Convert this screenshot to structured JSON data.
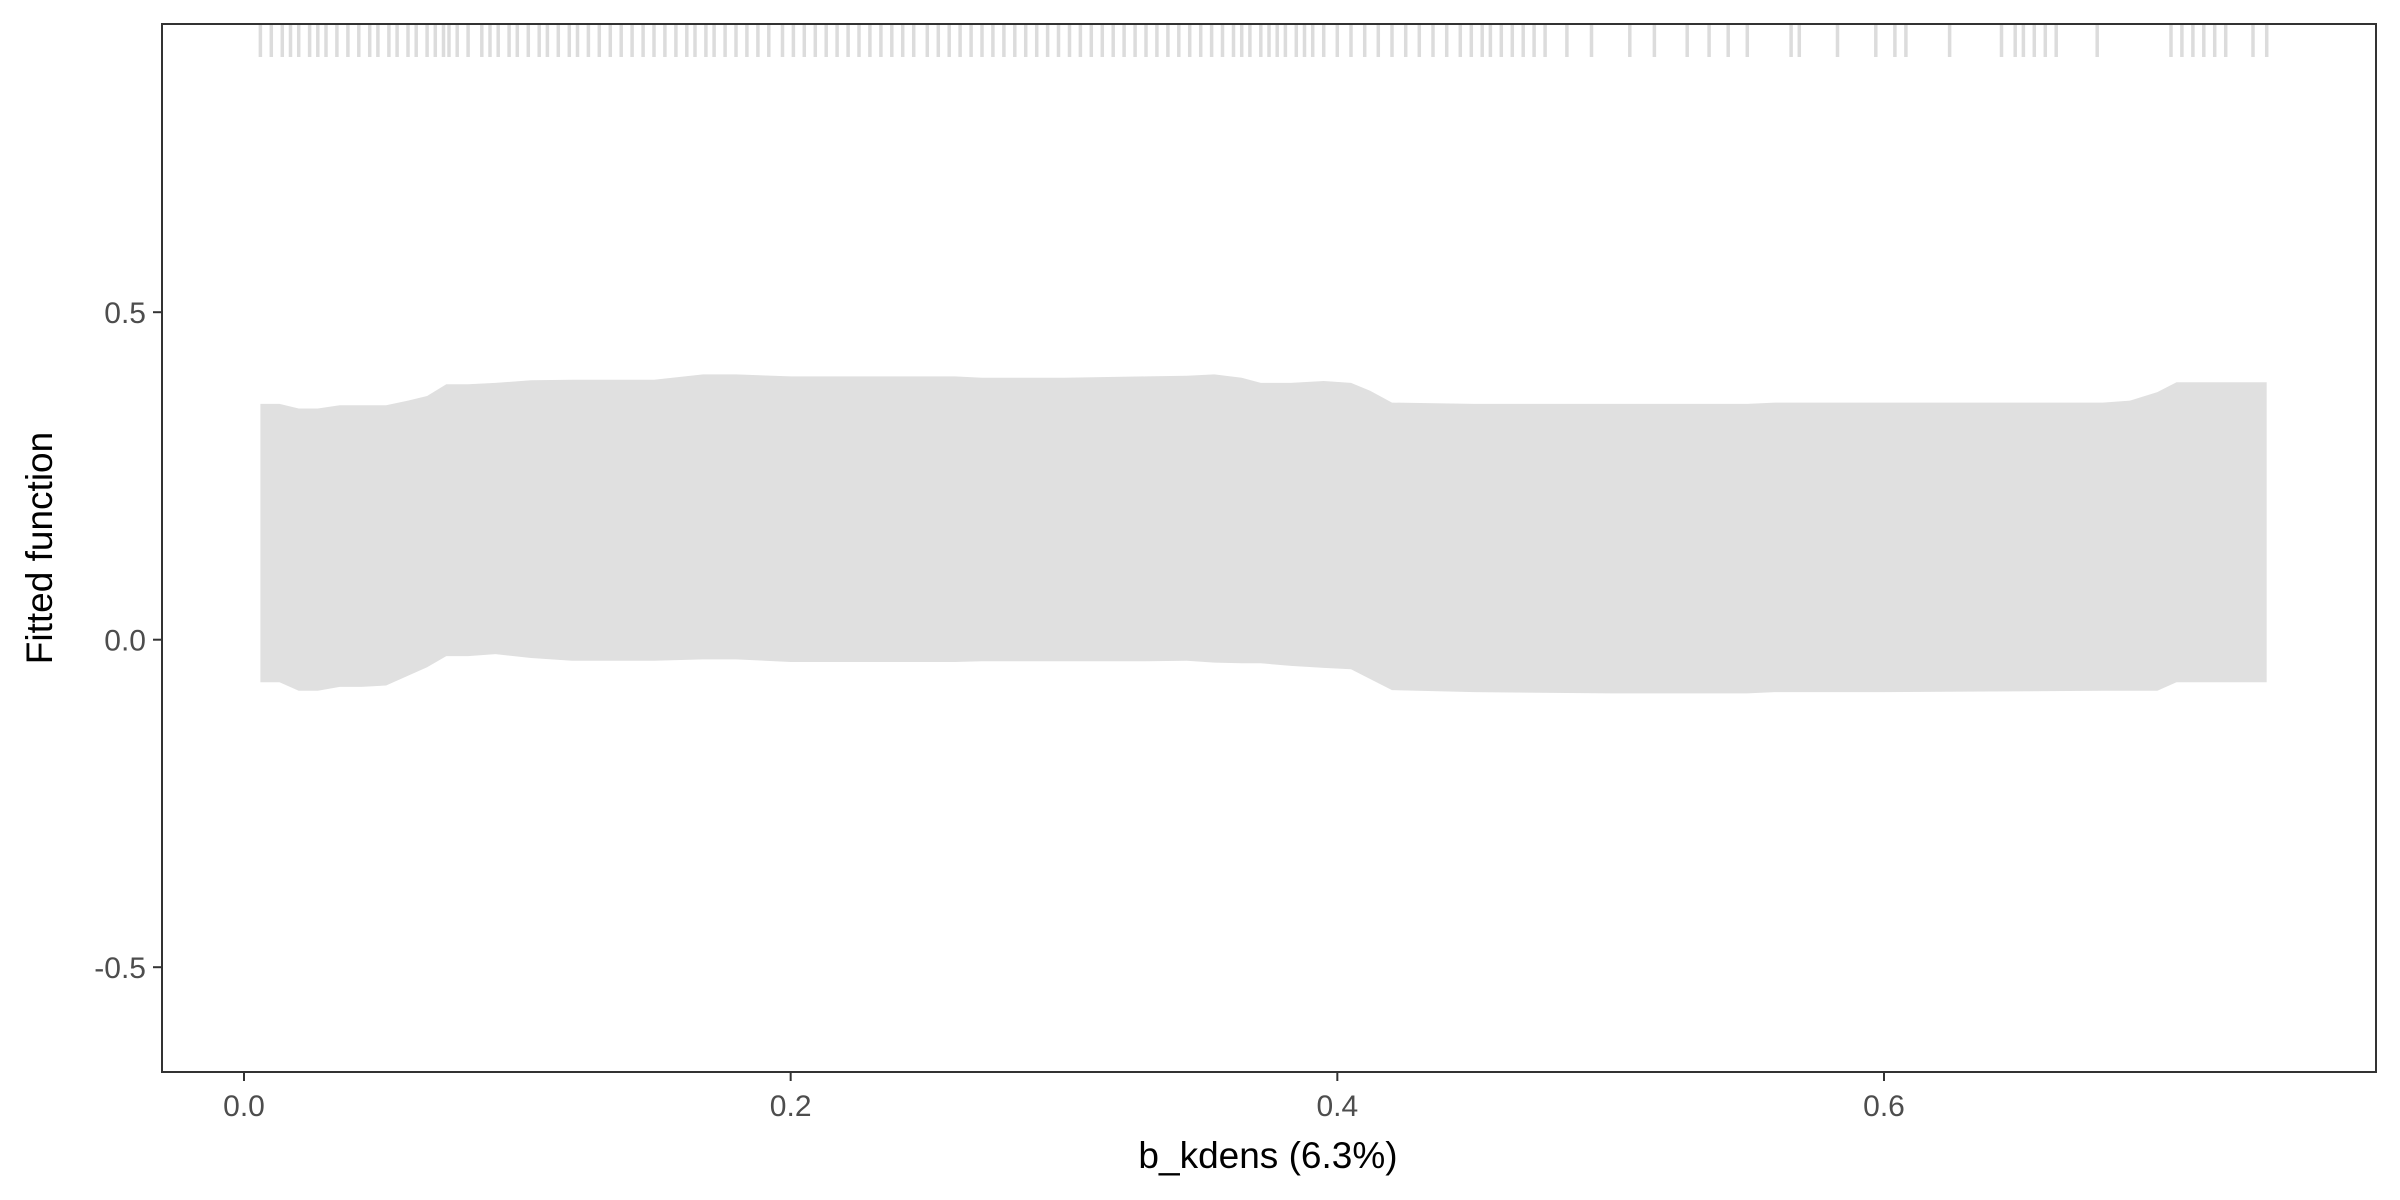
{
  "chart_data": {
    "type": "area",
    "title": "",
    "xlabel": "b_kdens  (6.3%)",
    "ylabel": "Fitted function",
    "xlim": [
      -0.03,
      0.78
    ],
    "ylim": [
      -0.66,
      0.94
    ],
    "x_ticks": [
      0.0,
      0.2,
      0.4,
      0.6
    ],
    "x_tick_labels": [
      "0.0",
      "0.2",
      "0.4",
      "0.6"
    ],
    "y_ticks": [
      -0.5,
      0.0,
      0.5
    ],
    "y_tick_labels": [
      "-0.5",
      "0.0",
      "0.5"
    ],
    "grid": false,
    "colors": {
      "band": "#e0e0e0",
      "rug": "#dcdcdc",
      "axis": "#333333",
      "tick": "#4d4d4d"
    },
    "band": {
      "x": [
        0.006,
        0.013,
        0.02,
        0.027,
        0.035,
        0.043,
        0.052,
        0.06,
        0.067,
        0.074,
        0.082,
        0.092,
        0.105,
        0.12,
        0.15,
        0.168,
        0.18,
        0.2,
        0.26,
        0.27,
        0.3,
        0.33,
        0.345,
        0.355,
        0.365,
        0.372,
        0.383,
        0.395,
        0.405,
        0.412,
        0.42,
        0.45,
        0.5,
        0.55,
        0.56,
        0.6,
        0.68,
        0.69,
        0.7,
        0.707,
        0.74
      ],
      "upper": [
        0.36,
        0.36,
        0.353,
        0.353,
        0.358,
        0.358,
        0.358,
        0.365,
        0.372,
        0.39,
        0.39,
        0.392,
        0.396,
        0.397,
        0.397,
        0.405,
        0.405,
        0.402,
        0.402,
        0.4,
        0.4,
        0.402,
        0.403,
        0.405,
        0.4,
        0.392,
        0.392,
        0.395,
        0.392,
        0.38,
        0.362,
        0.36,
        0.36,
        0.36,
        0.362,
        0.362,
        0.362,
        0.365,
        0.378,
        0.393,
        0.393
      ],
      "lower": [
        -0.065,
        -0.065,
        -0.078,
        -0.078,
        -0.072,
        -0.072,
        -0.07,
        -0.055,
        -0.042,
        -0.025,
        -0.025,
        -0.022,
        -0.028,
        -0.032,
        -0.032,
        -0.03,
        -0.03,
        -0.034,
        -0.034,
        -0.033,
        -0.033,
        -0.033,
        -0.032,
        -0.035,
        -0.036,
        -0.036,
        -0.04,
        -0.043,
        -0.045,
        -0.06,
        -0.077,
        -0.08,
        -0.082,
        -0.082,
        -0.08,
        -0.08,
        -0.078,
        -0.078,
        -0.078,
        -0.065,
        -0.065
      ]
    },
    "rug": [
      0.006,
      0.01,
      0.014,
      0.017,
      0.02,
      0.024,
      0.027,
      0.03,
      0.034,
      0.038,
      0.042,
      0.046,
      0.049,
      0.053,
      0.056,
      0.06,
      0.063,
      0.067,
      0.07,
      0.073,
      0.075,
      0.078,
      0.082,
      0.087,
      0.09,
      0.093,
      0.097,
      0.1,
      0.104,
      0.108,
      0.111,
      0.115,
      0.119,
      0.122,
      0.126,
      0.13,
      0.134,
      0.138,
      0.142,
      0.146,
      0.15,
      0.154,
      0.158,
      0.162,
      0.165,
      0.169,
      0.172,
      0.176,
      0.18,
      0.184,
      0.188,
      0.192,
      0.197,
      0.201,
      0.205,
      0.209,
      0.213,
      0.217,
      0.221,
      0.225,
      0.229,
      0.233,
      0.237,
      0.241,
      0.245,
      0.25,
      0.254,
      0.258,
      0.262,
      0.266,
      0.27,
      0.274,
      0.278,
      0.282,
      0.286,
      0.29,
      0.294,
      0.298,
      0.302,
      0.306,
      0.31,
      0.314,
      0.318,
      0.322,
      0.326,
      0.33,
      0.334,
      0.338,
      0.342,
      0.346,
      0.35,
      0.354,
      0.358,
      0.362,
      0.365,
      0.368,
      0.372,
      0.375,
      0.378,
      0.381,
      0.385,
      0.388,
      0.391,
      0.395,
      0.4,
      0.405,
      0.41,
      0.415,
      0.42,
      0.425,
      0.43,
      0.435,
      0.44,
      0.445,
      0.449,
      0.453,
      0.456,
      0.46,
      0.464,
      0.468,
      0.472,
      0.476,
      0.484,
      0.493,
      0.507,
      0.516,
      0.528,
      0.536,
      0.543,
      0.55,
      0.566,
      0.569,
      0.583,
      0.597,
      0.604,
      0.608,
      0.624,
      0.643,
      0.648,
      0.651,
      0.655,
      0.659,
      0.663,
      0.678,
      0.705,
      0.709,
      0.713,
      0.717,
      0.721,
      0.725,
      0.735,
      0.74
    ]
  }
}
